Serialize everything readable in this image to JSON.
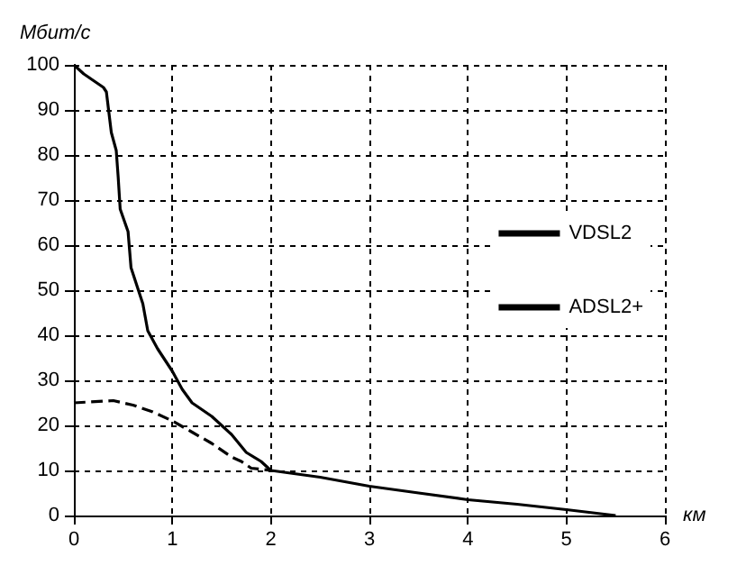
{
  "chart_data": {
    "type": "line",
    "xlabel": "км",
    "ylabel": "Мбит/с",
    "xlim": [
      0,
      6
    ],
    "xticks": [
      0,
      1,
      2,
      3,
      4,
      5,
      6
    ],
    "ylim": [
      0,
      100
    ],
    "yticks": [
      0,
      10,
      20,
      30,
      40,
      50,
      60,
      70,
      80,
      90,
      100
    ],
    "grid": true,
    "legend": "right",
    "marker": "none",
    "series": [
      {
        "name": "VDSL2",
        "color": "#000000",
        "line_style": "solid",
        "x": [
          0,
          0.1,
          0.2,
          0.3,
          0.33,
          0.38,
          0.43,
          0.45,
          0.47,
          0.55,
          0.58,
          0.7,
          0.75,
          0.85,
          1,
          1.1,
          1.2,
          1.4,
          1.6,
          1.75,
          1.9,
          2,
          2.5,
          3,
          3.5,
          4,
          4.5,
          5,
          5.5
        ],
        "values": [
          100,
          98,
          96.5,
          95,
          94,
          85,
          81,
          75,
          68,
          63,
          55,
          47,
          41,
          37,
          32,
          28,
          25,
          22,
          18,
          14,
          12,
          10,
          8.5,
          6.5,
          5,
          3.5,
          2.5,
          1.3,
          0
        ]
      },
      {
        "name": "ADSL2+",
        "color": "#000000",
        "line_style": "dashed",
        "x": [
          0,
          0.4,
          0.6,
          0.8,
          1,
          1.2,
          1.4,
          1.6,
          1.7,
          1.8,
          2
        ],
        "values": [
          25,
          25.5,
          24.5,
          23,
          21,
          18.5,
          16,
          13,
          12,
          10.5,
          10
        ]
      }
    ]
  }
}
